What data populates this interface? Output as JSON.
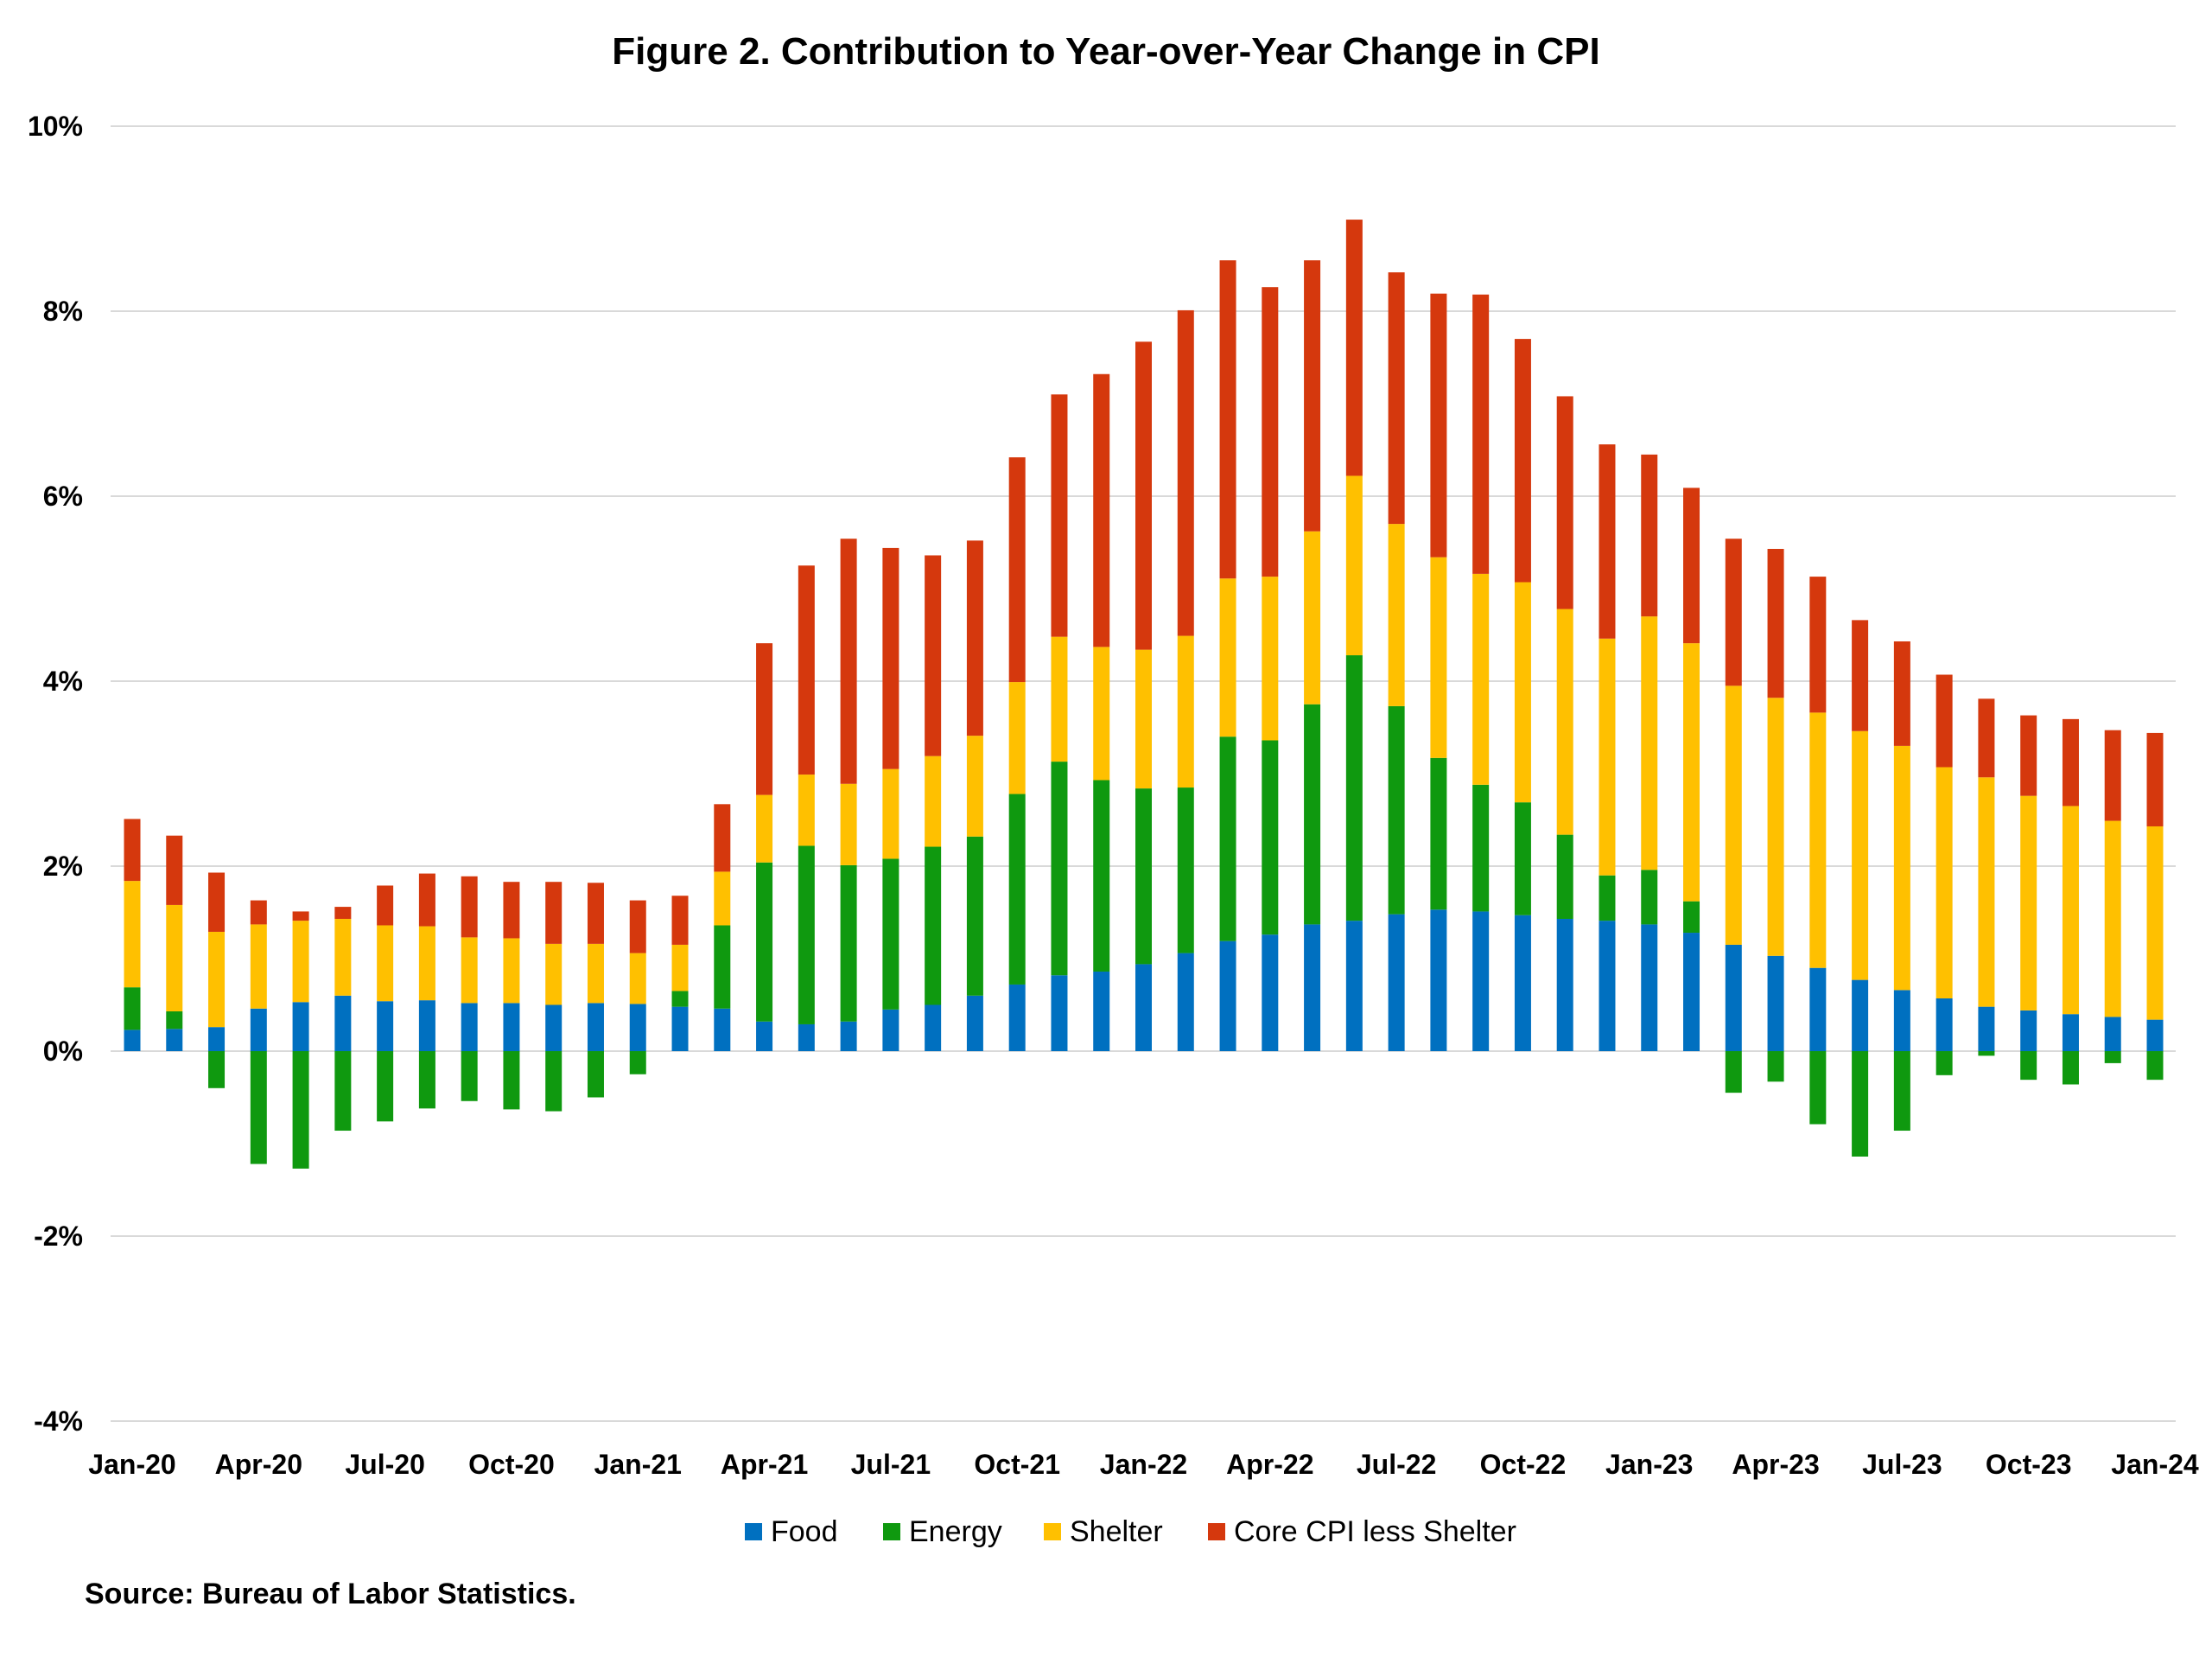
{
  "chart_data": {
    "type": "bar",
    "stacked": true,
    "title": "Figure 2. Contribution to Year-over-Year Change in CPI",
    "source": "Source: Bureau of Labor Statistics.",
    "ylim": [
      -4,
      10
    ],
    "yticks": [
      -4,
      -2,
      0,
      2,
      4,
      6,
      8,
      10
    ],
    "ytick_labels": [
      "-4%",
      "-2%",
      "0%",
      "2%",
      "4%",
      "6%",
      "8%",
      "10%"
    ],
    "grid": true,
    "legend_position": "bottom",
    "categories": [
      "Jan-20",
      "Feb-20",
      "Mar-20",
      "Apr-20",
      "May-20",
      "Jun-20",
      "Jul-20",
      "Aug-20",
      "Sep-20",
      "Oct-20",
      "Nov-20",
      "Dec-20",
      "Jan-21",
      "Feb-21",
      "Mar-21",
      "Apr-21",
      "May-21",
      "Jun-21",
      "Jul-21",
      "Aug-21",
      "Sep-21",
      "Oct-21",
      "Nov-21",
      "Dec-21",
      "Jan-22",
      "Feb-22",
      "Mar-22",
      "Apr-22",
      "May-22",
      "Jun-22",
      "Jul-22",
      "Aug-22",
      "Sep-22",
      "Oct-22",
      "Nov-22",
      "Dec-22",
      "Jan-23",
      "Feb-23",
      "Mar-23",
      "Apr-23",
      "May-23",
      "Jun-23",
      "Jul-23",
      "Aug-23",
      "Sep-23",
      "Oct-23",
      "Nov-23",
      "Dec-23",
      "Jan-24"
    ],
    "xtick_labels": [
      {
        "index": 0,
        "label": "Jan-20"
      },
      {
        "index": 3,
        "label": "Apr-20"
      },
      {
        "index": 6,
        "label": "Jul-20"
      },
      {
        "index": 9,
        "label": "Oct-20"
      },
      {
        "index": 12,
        "label": "Jan-21"
      },
      {
        "index": 15,
        "label": "Apr-21"
      },
      {
        "index": 18,
        "label": "Jul-21"
      },
      {
        "index": 21,
        "label": "Oct-21"
      },
      {
        "index": 24,
        "label": "Jan-22"
      },
      {
        "index": 27,
        "label": "Apr-22"
      },
      {
        "index": 30,
        "label": "Jul-22"
      },
      {
        "index": 33,
        "label": "Oct-22"
      },
      {
        "index": 36,
        "label": "Jan-23"
      },
      {
        "index": 39,
        "label": "Apr-23"
      },
      {
        "index": 42,
        "label": "Jul-23"
      },
      {
        "index": 45,
        "label": "Oct-23"
      },
      {
        "index": 48,
        "label": "Jan-24"
      }
    ],
    "series": [
      {
        "name": "Food",
        "color": "#0070C0",
        "values": [
          0.23,
          0.24,
          0.26,
          0.46,
          0.53,
          0.6,
          0.54,
          0.55,
          0.52,
          0.52,
          0.5,
          0.52,
          0.51,
          0.48,
          0.46,
          0.32,
          0.29,
          0.32,
          0.45,
          0.5,
          0.6,
          0.72,
          0.82,
          0.86,
          0.94,
          1.06,
          1.19,
          1.26,
          1.37,
          1.41,
          1.48,
          1.53,
          1.51,
          1.47,
          1.43,
          1.41,
          1.37,
          1.28,
          1.15,
          1.03,
          0.9,
          0.77,
          0.66,
          0.57,
          0.48,
          0.44,
          0.4,
          0.37,
          0.34
        ]
      },
      {
        "name": "Energy",
        "color": "#0F990F",
        "values": [
          0.46,
          0.19,
          -0.4,
          -1.22,
          -1.27,
          -0.86,
          -0.76,
          -0.62,
          -0.54,
          -0.63,
          -0.65,
          -0.5,
          -0.25,
          0.17,
          0.9,
          1.72,
          1.93,
          1.69,
          1.63,
          1.71,
          1.72,
          2.06,
          2.31,
          2.07,
          1.9,
          1.79,
          2.21,
          2.1,
          2.38,
          2.87,
          2.25,
          1.64,
          1.37,
          1.22,
          0.91,
          0.49,
          0.59,
          0.34,
          -0.45,
          -0.33,
          -0.79,
          -1.14,
          -0.86,
          -0.26,
          -0.05,
          -0.31,
          -0.36,
          -0.13,
          -0.31
        ]
      },
      {
        "name": "Shelter",
        "color": "#FFC000",
        "values": [
          1.15,
          1.15,
          1.03,
          0.91,
          0.88,
          0.83,
          0.82,
          0.8,
          0.71,
          0.7,
          0.66,
          0.64,
          0.55,
          0.5,
          0.58,
          0.73,
          0.77,
          0.88,
          0.97,
          0.98,
          1.09,
          1.21,
          1.35,
          1.44,
          1.5,
          1.64,
          1.71,
          1.77,
          1.87,
          1.94,
          1.97,
          2.17,
          2.28,
          2.38,
          2.44,
          2.56,
          2.74,
          2.79,
          2.8,
          2.79,
          2.76,
          2.69,
          2.64,
          2.5,
          2.48,
          2.32,
          2.25,
          2.12,
          2.09
        ]
      },
      {
        "name": "Core CPI less Shelter",
        "color": "#D5380D",
        "values": [
          0.67,
          0.75,
          0.64,
          0.26,
          0.1,
          0.13,
          0.43,
          0.57,
          0.66,
          0.61,
          0.67,
          0.66,
          0.57,
          0.53,
          0.73,
          1.64,
          2.26,
          2.65,
          2.39,
          2.17,
          2.11,
          2.43,
          2.62,
          2.95,
          3.33,
          3.52,
          3.44,
          3.13,
          2.93,
          2.77,
          2.72,
          2.85,
          3.02,
          2.63,
          2.3,
          2.1,
          1.75,
          1.68,
          1.59,
          1.61,
          1.47,
          1.2,
          1.13,
          1.0,
          0.85,
          0.87,
          0.94,
          0.98,
          1.01
        ]
      }
    ]
  }
}
